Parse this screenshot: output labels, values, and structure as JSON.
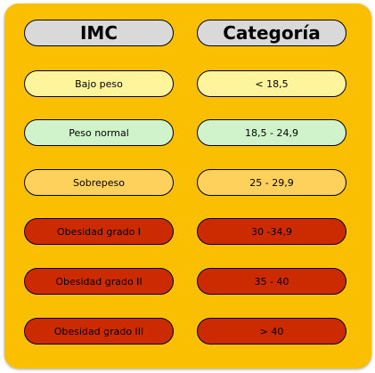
{
  "headers": {
    "imc": "IMC",
    "categoria": "Categoría"
  },
  "colors": {
    "background": "#f9bf00",
    "header": "#d9d9d9",
    "bajo_peso": "#fdf49b",
    "peso_normal": "#d0f3cb",
    "sobrepeso": "#fdd15c",
    "obesidad": "#cc2a00"
  },
  "rows": [
    {
      "label": "Bajo peso",
      "range": "< 18,5"
    },
    {
      "label": "Peso normal",
      "range": "18,5 - 24,9"
    },
    {
      "label": "Sobrepeso",
      "range": "25 - 29,9"
    },
    {
      "label": "Obesidad grado I",
      "range": "30 -34,9"
    },
    {
      "label": "Obesidad grado II",
      "range": "35 -  40"
    },
    {
      "label": "Obesidad grado III",
      "range": "> 40"
    }
  ]
}
